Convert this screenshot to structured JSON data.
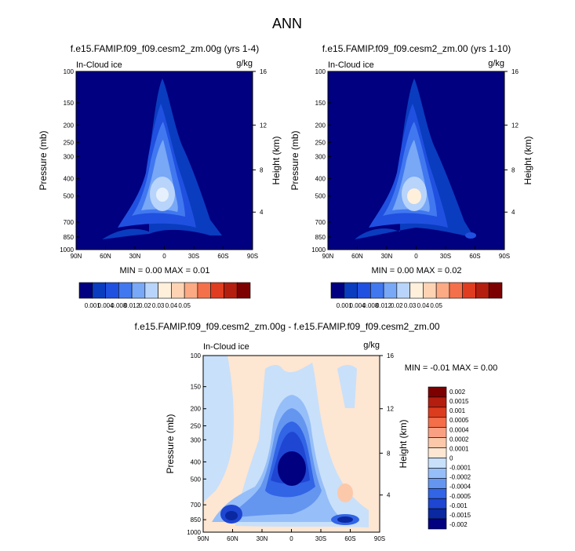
{
  "figure": {
    "title": "ANN"
  },
  "colors": {
    "positive_scale": [
      "#000080",
      "#0a3cbf",
      "#2050e0",
      "#4178f0",
      "#78a8f6",
      "#b8d4fa",
      "#fff0dc",
      "#fdd3b4",
      "#fbaa84",
      "#f4704a",
      "#e03c20",
      "#b41e0f",
      "#7d0000"
    ],
    "diverging_scale": [
      "#000080",
      "#0a28a0",
      "#1e46d2",
      "#3264e6",
      "#6496f0",
      "#96bef8",
      "#c8e0fa",
      "#fde6d2",
      "#fcc8aa",
      "#faa082",
      "#f46e4a",
      "#dc3c1e",
      "#b41e0f",
      "#7d0000"
    ]
  },
  "chart_data": [
    {
      "type": "contour",
      "panel": "top-left",
      "title": "f.e15.FAMIP.f09_f09.cesm2_zm.00g (yrs 1-4)",
      "field_label": "In-Cloud ice",
      "units": "g/kg",
      "ylabel": "Pressure (mb)",
      "y2label": "Height (km)",
      "x_ticks": [
        "90N",
        "60N",
        "30N",
        "0",
        "30S",
        "60S",
        "90S"
      ],
      "y_ticks": [
        "100",
        "150",
        "200",
        "250",
        "300",
        "400",
        "500",
        "700",
        "850",
        "1000"
      ],
      "y2_ticks": [
        "16",
        "12",
        "8",
        "4"
      ],
      "min_max": "MIN =   0.00  MAX =   0.01",
      "max_value": 0.01
    },
    {
      "type": "contour",
      "panel": "top-right",
      "title": "f.e15.FAMIP.f09_f09.cesm2_zm.00 (yrs 1-10)",
      "field_label": "In-Cloud ice",
      "units": "g/kg",
      "ylabel": "Pressure (mb)",
      "y2label": "Height (km)",
      "x_ticks": [
        "90N",
        "60N",
        "30N",
        "0",
        "30S",
        "60S",
        "90S"
      ],
      "y_ticks": [
        "100",
        "150",
        "200",
        "250",
        "300",
        "400",
        "500",
        "700",
        "850",
        "1000"
      ],
      "y2_ticks": [
        "16",
        "12",
        "8",
        "4"
      ],
      "min_max": "MIN =   0.00  MAX =   0.02",
      "max_value": 0.02
    },
    {
      "type": "contour",
      "panel": "bottom-difference",
      "title": "f.e15.FAMIP.f09_f09.cesm2_zm.00g - f.e15.FAMIP.f09_f09.cesm2_zm.00",
      "field_label": "In-Cloud ice",
      "units": "g/kg",
      "ylabel": "Pressure (mb)",
      "y2label": "Height (km)",
      "x_ticks": [
        "90N",
        "60N",
        "30N",
        "0",
        "30S",
        "60S",
        "90S"
      ],
      "y_ticks": [
        "100",
        "150",
        "200",
        "250",
        "300",
        "400",
        "500",
        "700",
        "850",
        "1000"
      ],
      "y2_ticks": [
        "16",
        "12",
        "8",
        "4"
      ],
      "min_max": "MIN =  -0.01  MAX =   0.00",
      "min_value": -0.01,
      "max_value": 0.0
    }
  ],
  "colorbars": {
    "top_left_labels": [
      "0.001",
      "0.004",
      "0.008",
      "0.012",
      "0.02",
      "0.03",
      "0.04",
      "0.05"
    ],
    "top_right_labels": [
      "0.001",
      "0.004",
      "0.008",
      "0.012",
      "0.02",
      "0.03",
      "0.04",
      "0.05"
    ],
    "difference_labels": [
      "0.002",
      "0.0015",
      "0.001",
      "0.0005",
      "0.0004",
      "0.0002",
      "0.0001",
      "0",
      "-0.0001",
      "-0.0002",
      "-0.0004",
      "-0.0005",
      "-0.001",
      "-0.0015",
      "-0.002"
    ]
  }
}
